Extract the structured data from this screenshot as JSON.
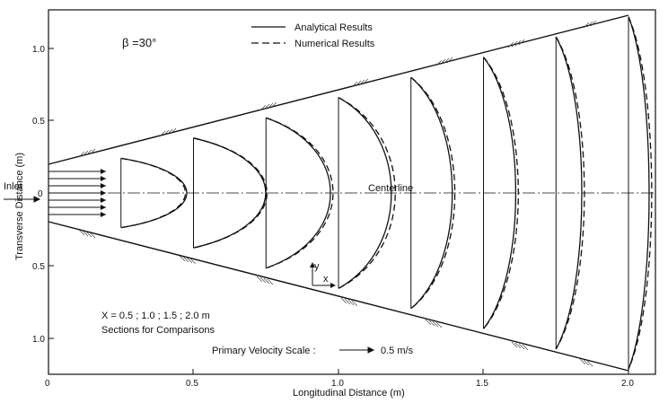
{
  "labels": {
    "beta": "β =30°",
    "legend_analytical": "Analytical Results",
    "legend_numerical": "Numerical Results",
    "inlet": "Inlet",
    "centerline": "Centerline",
    "xlabel": "Longitudinal Distance (m)",
    "ylabel": "Transverse Distance (m)",
    "sections_line1": "X = 0.5 ; 1.0 ; 1.5 ; 2.0 m",
    "sections_line2": "Sections for Comparisons",
    "velocity_scale_label": "Primary Velocity Scale :",
    "velocity_scale_value": "0.5 m/s",
    "axis_y": "y",
    "axis_x": "x"
  },
  "x_ticks": [
    "0",
    "0.5",
    "1.0",
    "1.5",
    "2.0"
  ],
  "y_ticks_top": [
    "1.0",
    "0.5",
    "0"
  ],
  "y_ticks_bottom": [
    "0.5",
    "1.0"
  ],
  "chart_data": {
    "type": "line",
    "xlabel": "Longitudinal Distance (m)",
    "ylabel": "Transverse Distance (m)",
    "xlim": [
      0,
      2.1
    ],
    "ylim": [
      -1.25,
      1.25
    ],
    "channel_half_width_at_inlet": 0.1,
    "channel_half_width_at_end": 1.22,
    "sections_x": [
      0.25,
      0.5,
      0.75,
      1.0,
      1.25,
      1.5,
      1.75,
      2.0
    ],
    "velocity_scale_m_per_s": 0.5,
    "series": [
      {
        "name": "Analytical Results",
        "peak_velocity": [
          0.51,
          0.56,
          0.5,
          0.41,
          0.32,
          0.25,
          0.2,
          0.16
        ]
      },
      {
        "name": "Numerical Results",
        "peak_velocity": [
          0.5,
          0.57,
          0.52,
          0.44,
          0.34,
          0.27,
          0.22,
          0.18
        ]
      }
    ]
  }
}
